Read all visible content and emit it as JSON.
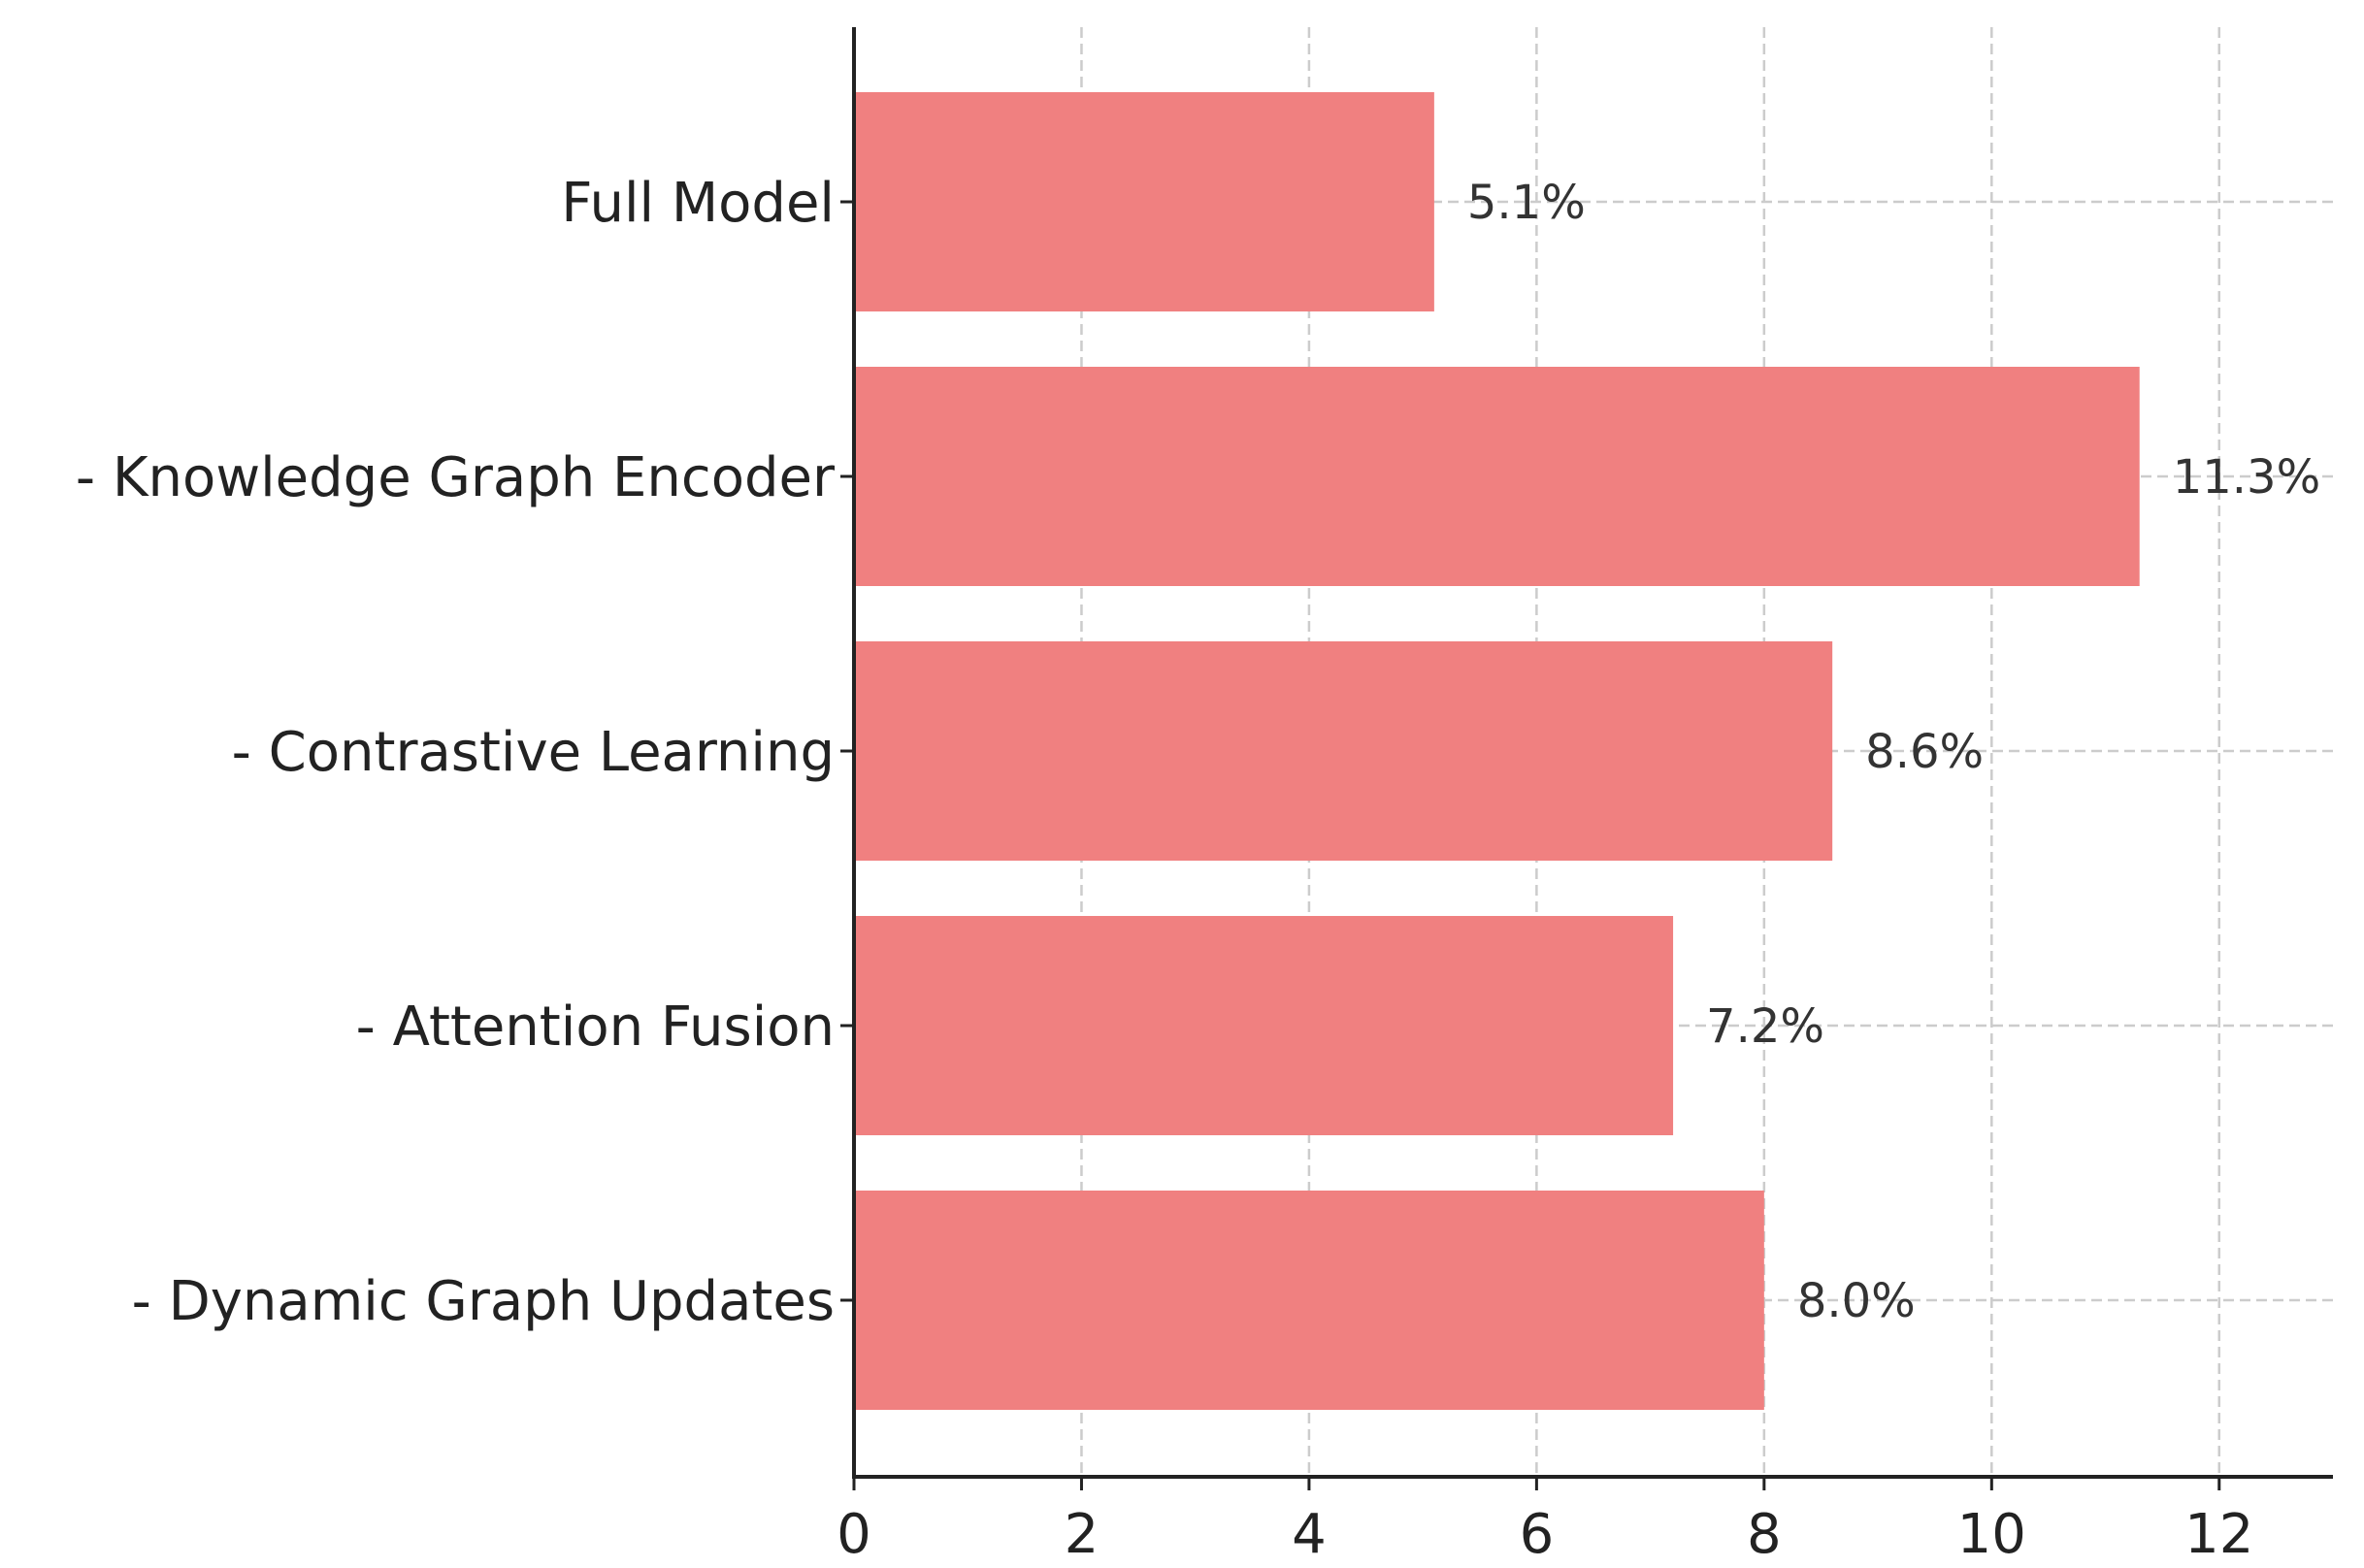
{
  "chart_data": {
    "type": "bar",
    "orientation": "horizontal",
    "categories": [
      "Full Model",
      "- Knowledge Graph Encoder",
      "- Contrastive Learning",
      "- Attention Fusion",
      "- Dynamic Graph Updates"
    ],
    "values": [
      5.1,
      11.3,
      8.6,
      7.2,
      8.0
    ],
    "data_labels": [
      "5.1%",
      "11.3%",
      "8.6%",
      "7.2%",
      "8.0%"
    ],
    "xticks": [
      0,
      2,
      4,
      6,
      8,
      10,
      12
    ],
    "xtick_labels": [
      "0",
      "2",
      "4",
      "6",
      "8",
      "10",
      "12"
    ],
    "xlim": [
      0,
      13
    ],
    "title": "",
    "xlabel": "",
    "ylabel": "",
    "grid": true,
    "grid_style": "dashed",
    "bar_color": "#f08080",
    "axis_color": "#222222",
    "grid_color": "#cccccc"
  }
}
